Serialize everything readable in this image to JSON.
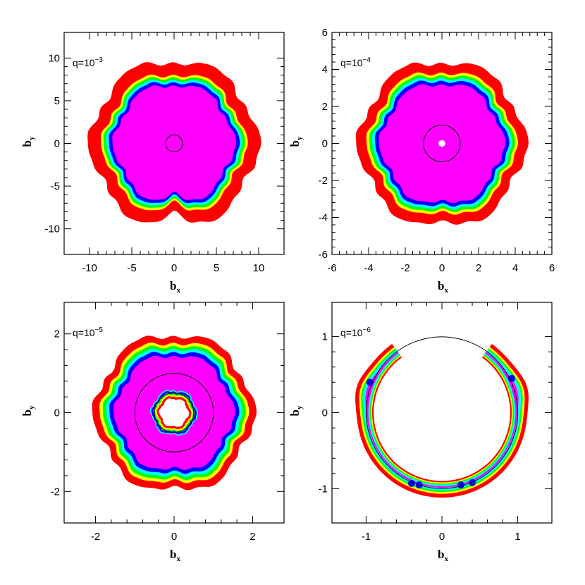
{
  "colors": {
    "red": "#ff0000",
    "yellow": "#ffff00",
    "green": "#00ff00",
    "cyan": "#00ffff",
    "blue": "#0000ff",
    "magenta": "#ff00ff"
  },
  "chart_data": [
    {
      "type": "heatmap",
      "label_base": "q=10",
      "label_exp": "−3",
      "xlabel": "b",
      "xlabel_sub": "x",
      "ylabel": "b",
      "ylabel_sub": "y",
      "xlim": [
        -13,
        13
      ],
      "ylim": [
        -13,
        13
      ],
      "xticks": [
        -10,
        -5,
        0,
        5,
        10
      ],
      "yticks": [
        -10,
        -5,
        0,
        5,
        10
      ],
      "xtick_labels": [
        "-10",
        "-5",
        "0",
        "5",
        "10"
      ],
      "ytick_labels": [
        "-10",
        "-5",
        "0",
        "5",
        "10"
      ],
      "grid": false,
      "regions": [
        {
          "color": "red",
          "r": 9.8
        },
        {
          "color": "yellow",
          "r": 8.3
        },
        {
          "color": "green",
          "r": 8.0
        },
        {
          "color": "cyan",
          "r": 7.7
        },
        {
          "color": "blue",
          "r": 7.4
        },
        {
          "color": "magenta",
          "r": 7.0
        }
      ],
      "hole_r": 0,
      "circles": [
        1
      ]
    },
    {
      "type": "heatmap",
      "label_base": "q=10",
      "label_exp": "−4",
      "xlabel": "b",
      "xlabel_sub": "x",
      "ylabel": "b",
      "ylabel_sub": "y",
      "xlim": [
        -6,
        6
      ],
      "ylim": [
        -6,
        6
      ],
      "xticks": [
        -6,
        -4,
        -2,
        0,
        2,
        4,
        6
      ],
      "yticks": [
        -6,
        -4,
        -2,
        0,
        2,
        4,
        6
      ],
      "xtick_labels": [
        "-6",
        "-4",
        "-2",
        "0",
        "2",
        "4",
        "6"
      ],
      "ytick_labels": [
        "-6",
        "-4",
        "-2",
        "0",
        "2",
        "4",
        "6"
      ],
      "grid": false,
      "regions": [
        {
          "color": "red",
          "r": 4.5
        },
        {
          "color": "yellow",
          "r": 3.95
        },
        {
          "color": "green",
          "r": 3.8
        },
        {
          "color": "cyan",
          "r": 3.65
        },
        {
          "color": "blue",
          "r": 3.5
        },
        {
          "color": "magenta",
          "r": 3.3
        }
      ],
      "hole_r": 0.18,
      "circles": [
        1
      ]
    },
    {
      "type": "heatmap",
      "label_base": "q=10",
      "label_exp": "−5",
      "xlabel": "b",
      "xlabel_sub": "x",
      "ylabel": "b",
      "ylabel_sub": "y",
      "xlim": [
        -2.8,
        2.8
      ],
      "ylim": [
        -2.8,
        2.8
      ],
      "xticks": [
        -2,
        0,
        2
      ],
      "yticks": [
        -2,
        0,
        2
      ],
      "xtick_labels": [
        "-2",
        "0",
        "2"
      ],
      "ytick_labels": [
        "-2",
        "0",
        "2"
      ],
      "grid": false,
      "regions": [
        {
          "color": "red",
          "r": 2.0
        },
        {
          "color": "yellow",
          "r": 1.82
        },
        {
          "color": "green",
          "r": 1.74
        },
        {
          "color": "cyan",
          "r": 1.66
        },
        {
          "color": "blue",
          "r": 1.58
        },
        {
          "color": "magenta",
          "r": 1.48
        }
      ],
      "inner_rings": [
        {
          "color": "cyan",
          "r": 0.58
        },
        {
          "color": "blue",
          "r": 0.55
        },
        {
          "color": "green",
          "r": 0.5
        },
        {
          "color": "yellow",
          "r": 0.46
        },
        {
          "color": "red",
          "r": 0.42
        }
      ],
      "hole_r": 0.36,
      "circles": [
        1,
        0.5
      ]
    },
    {
      "type": "heatmap",
      "label_base": "q=10",
      "label_exp": "−6",
      "xlabel": "b",
      "xlabel_sub": "x",
      "ylabel": "b",
      "ylabel_sub": "y",
      "xlim": [
        -1.45,
        1.45
      ],
      "ylim": [
        -1.45,
        1.45
      ],
      "xticks": [
        -1,
        0,
        1
      ],
      "yticks": [
        -1,
        0,
        1
      ],
      "xtick_labels": [
        "-1",
        "0",
        "1"
      ],
      "ytick_labels": [
        "-1",
        "0",
        "1"
      ],
      "grid": false,
      "band": {
        "r_outer": 1.12,
        "r_inner": 0.9,
        "gap_top_deg": [
          54,
          126
        ]
      },
      "circles": [
        1
      ]
    }
  ]
}
